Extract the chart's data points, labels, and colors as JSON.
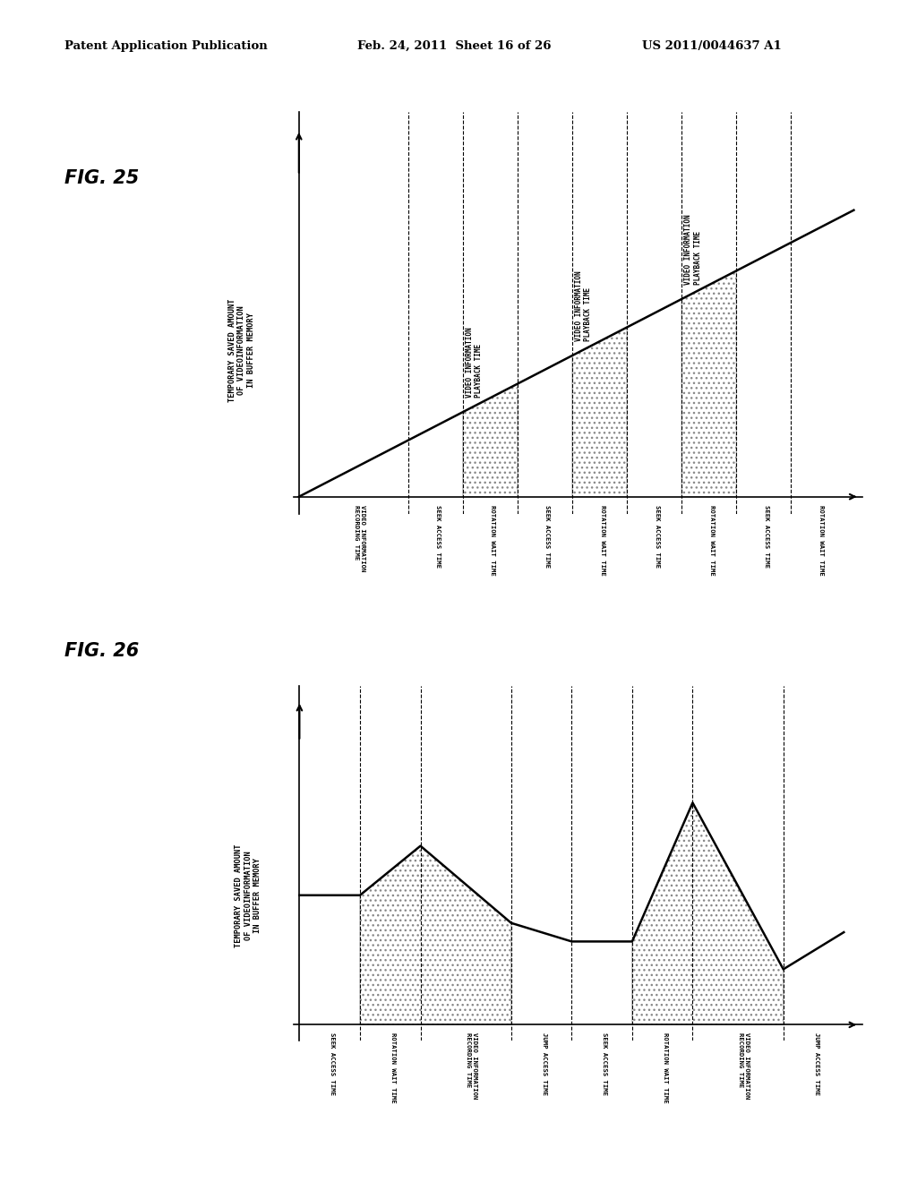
{
  "header_left": "Patent Application Publication",
  "header_mid": "Feb. 24, 2011  Sheet 16 of 26",
  "header_right": "US 2011/0044637 A1",
  "fig25_label": "FIG. 25",
  "fig26_label": "FIG. 26",
  "fig25_ylabel": "TEMPORARY SAVED AMOUNT\nOF VIDEOINFORMATION\nIN BUFFER MEMORY",
  "fig26_ylabel": "TEMPORARY SAVED AMOUNT\nOF VIDEOINFORMATION\nIN BUFFER MEMORY",
  "fig25_xtick_labels": [
    "VIDEO INFORMATION\nRECORDING TIME",
    "SEEK ACCESS TIME",
    "ROTATION WAIT TIME",
    "SEEK ACCESS TIME",
    "ROTATION WAIT TIME",
    "SEEK ACCESS TIME",
    "ROTATION WAIT TIME",
    "SEEK ACCESS TIME",
    "ROTATION WAIT TIME"
  ],
  "fig26_xtick_labels": [
    "SEEK ACCESS TIME",
    "ROTATION WAIT TIME",
    "VIDEO INFORMATION\nRECORDING TIME",
    "JUMP ACCESS TIME",
    "SEEK ACCESS TIME",
    "ROTATION WAIT TIME",
    "VIDEO INFORMATION\nRECORDING TIME",
    "JUMP ACCESS TIME"
  ],
  "fig25_seg_widths": [
    2.0,
    1.0,
    1.0,
    1.0,
    1.0,
    1.0,
    1.0,
    1.0,
    1.0
  ],
  "fig26_seg_widths": [
    1.0,
    1.0,
    1.5,
    1.0,
    1.0,
    1.0,
    1.5,
    1.0
  ],
  "background_color": "#ffffff"
}
